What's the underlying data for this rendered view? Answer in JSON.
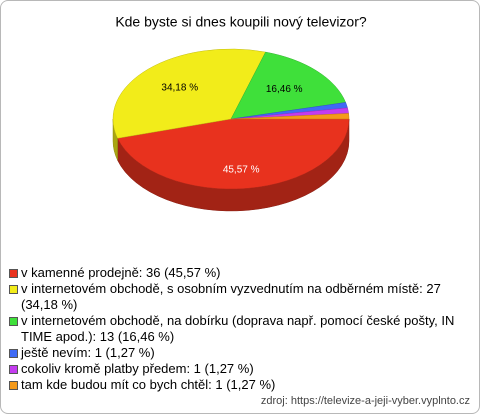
{
  "chart_data": {
    "type": "pie3d",
    "title": "Kde byste si dnes koupili nový televizor?",
    "categories": [
      "v kamenné prodejně: 36 (45,57 %)",
      "v internetovém obchodě, s osobním vyzvednutím na odběrném místě: 27 (34,18 %)",
      "v internetovém obchodě, na dobírku (doprava např. pomocí české pošty, IN TIME apod.): 13 (16,46 %)",
      "ještě nevím: 1 (1,27 %)",
      "cokoliv kromě platby předem: 1 (1,27 %)",
      "tam kde budou mít  co bych chtěl: 1 (1,27 %)"
    ],
    "values": [
      45.57,
      34.18,
      16.46,
      1.27,
      1.27,
      1.27
    ],
    "value_labels": [
      "45,57 %",
      "34,18 %",
      "16,46 %",
      null,
      null,
      null
    ],
    "colors": [
      "#e8321e",
      "#f2ec1a",
      "#3fe03a",
      "#3f6af5",
      "#c43cf0",
      "#f59a1a"
    ],
    "source": "zdroj: https://televize-a-jeji-vyber.vyplnto.cz"
  }
}
